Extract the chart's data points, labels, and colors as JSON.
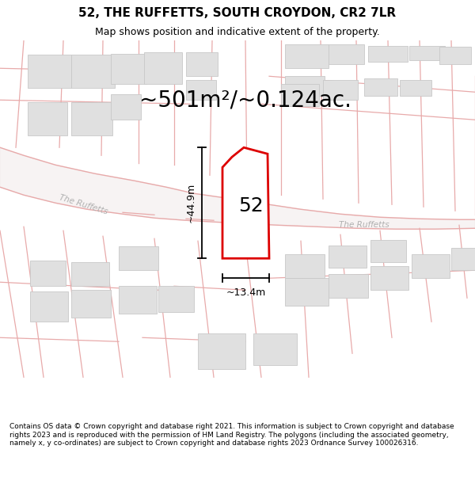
{
  "title": "52, THE RUFFETTS, SOUTH CROYDON, CR2 7LR",
  "subtitle": "Map shows position and indicative extent of the property.",
  "area_text": "~501m²/~0.124ac.",
  "number_label": "52",
  "dim_height": "~44.9m",
  "dim_width": "~13.4m",
  "footer_text": "Contains OS data © Crown copyright and database right 2021. This information is subject to Crown copyright and database rights 2023 and is reproduced with the permission of HM Land Registry. The polygons (including the associated geometry, namely x, y co-ordinates) are subject to Crown copyright and database rights 2023 Ordnance Survey 100026316.",
  "bg_color": "#ffffff",
  "building_color": "#e0e0e0",
  "building_edge": "#c8c8c8",
  "property_fill": "#ffffff",
  "property_edge": "#dd0000",
  "road_line_color": "#e8aaaa",
  "road_fill_color": "#f5e8e8",
  "road_label_color": "#aaaaaa",
  "dim_line_color": "#000000",
  "figsize": [
    6.0,
    6.25
  ],
  "dpi": 100,
  "title_fontsize": 11,
  "subtitle_fontsize": 9,
  "area_fontsize": 20,
  "number_fontsize": 18,
  "dim_fontsize": 9,
  "footer_fontsize": 6.5
}
